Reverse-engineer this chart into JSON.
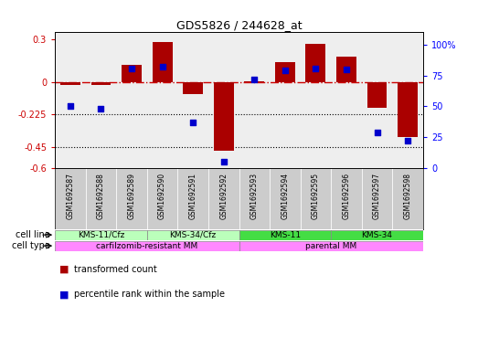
{
  "title": "GDS5826 / 244628_at",
  "samples": [
    "GSM1692587",
    "GSM1692588",
    "GSM1692589",
    "GSM1692590",
    "GSM1692591",
    "GSM1692592",
    "GSM1692593",
    "GSM1692594",
    "GSM1692595",
    "GSM1692596",
    "GSM1692597",
    "GSM1692598"
  ],
  "red_bars": [
    -0.02,
    -0.02,
    0.12,
    0.28,
    -0.08,
    -0.48,
    0.01,
    0.14,
    0.27,
    0.18,
    -0.18,
    -0.38
  ],
  "blue_pct": [
    50,
    48,
    81,
    82,
    37,
    5,
    72,
    79,
    81,
    80,
    29,
    22
  ],
  "ylim_left": [
    -0.6,
    0.35
  ],
  "ylim_right": [
    0,
    110
  ],
  "yticks_left": [
    0.3,
    0.0,
    -0.225,
    -0.45,
    -0.6
  ],
  "yticks_right": [
    100,
    75,
    50,
    25,
    0
  ],
  "hline_zero": 0.0,
  "hline_225": -0.225,
  "hline_45": -0.45,
  "cell_line_groups": [
    {
      "label": "KMS-11/Cfz",
      "start": 0,
      "end": 2,
      "color": "#bbffbb"
    },
    {
      "label": "KMS-34/Cfz",
      "start": 3,
      "end": 5,
      "color": "#bbffbb"
    },
    {
      "label": "KMS-11",
      "start": 6,
      "end": 8,
      "color": "#44dd44"
    },
    {
      "label": "KMS-34",
      "start": 9,
      "end": 11,
      "color": "#44dd44"
    }
  ],
  "cell_type_groups": [
    {
      "label": "carfilzomib-resistant MM",
      "start": 0,
      "end": 5,
      "color": "#ff88ff"
    },
    {
      "label": "parental MM",
      "start": 6,
      "end": 11,
      "color": "#ff88ff"
    }
  ],
  "bar_color": "#aa0000",
  "dot_color": "#0000cc",
  "zero_line_color": "#cc0000",
  "legend_items": [
    "transformed count",
    "percentile rank within the sample"
  ],
  "bg_color": "#ffffff",
  "plot_bg": "#eeeeee"
}
